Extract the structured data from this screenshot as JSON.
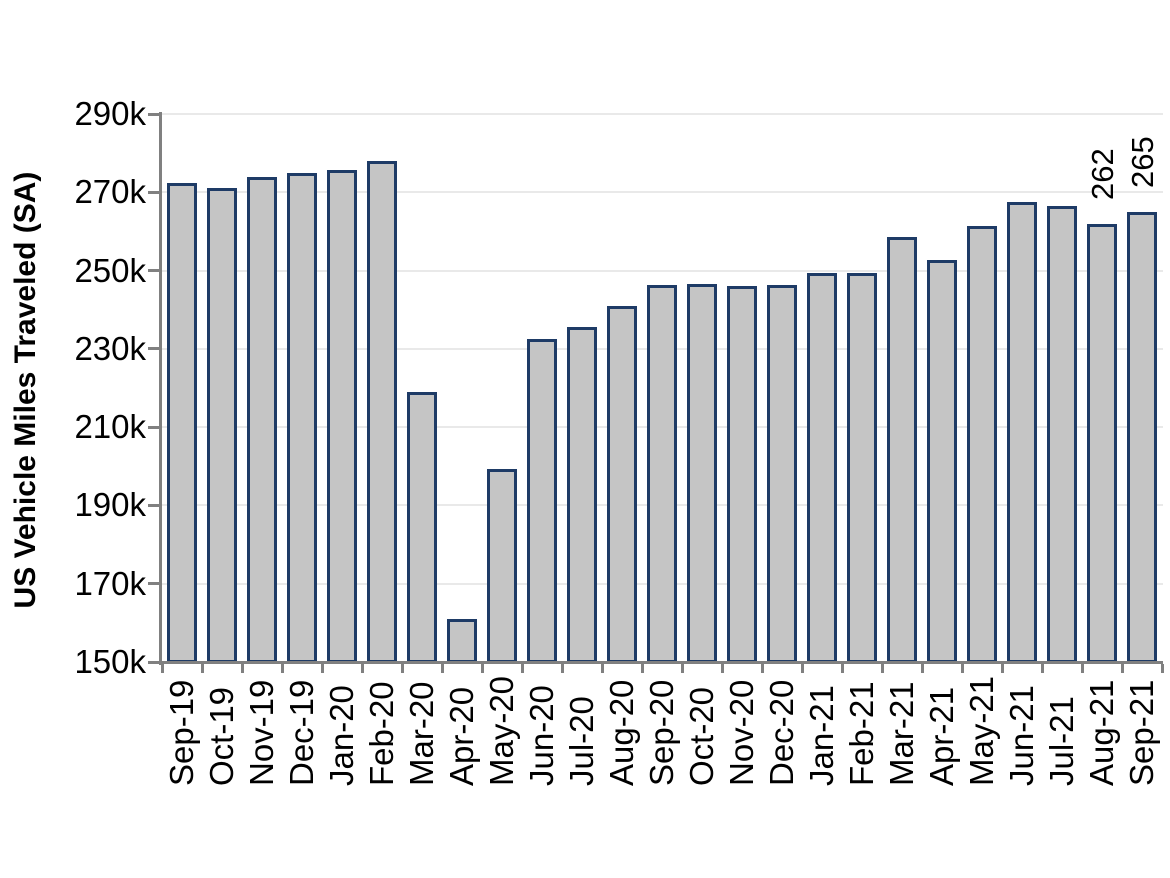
{
  "chart_data": {
    "type": "bar",
    "title": "",
    "xlabel": "",
    "ylabel": "US Vehicle Miles Traveled (SA)",
    "categories": [
      "Sep-19",
      "Oct-19",
      "Nov-19",
      "Dec-19",
      "Jan-20",
      "Feb-20",
      "Mar-20",
      "Apr-20",
      "May-20",
      "Jun-20",
      "Jul-20",
      "Aug-20",
      "Sep-20",
      "Oct-20",
      "Nov-20",
      "Dec-20",
      "Jan-21",
      "Feb-21",
      "Mar-21",
      "Apr-21",
      "May-21",
      "Jun-21",
      "Jul-21",
      "Aug-21",
      "Sep-21"
    ],
    "values": [
      272.3,
      271.0,
      273.8,
      274.9,
      275.6,
      277.9,
      219.0,
      161.0,
      199.3,
      232.6,
      235.6,
      241.0,
      246.3,
      246.6,
      246.0,
      246.3,
      249.5,
      249.3,
      258.5,
      252.6,
      261.4,
      267.5,
      266.4,
      262.0,
      265.0
    ],
    "data_labels": [
      "",
      "",
      "",
      "",
      "",
      "",
      "",
      "",
      "",
      "",
      "",
      "",
      "",
      "",
      "",
      "",
      "",
      "",
      "",
      "",
      "",
      "",
      "",
      "262",
      "265"
    ],
    "yticks": [
      150,
      170,
      190,
      210,
      230,
      250,
      270,
      290
    ],
    "ytick_suffix": "k",
    "ylim": [
      150,
      290
    ],
    "values_unit": "thousands (k), matching axis labels",
    "grid": true,
    "legend": false,
    "colors": {
      "bar_fill": "#C5C5C5",
      "bar_border": "#1E3B66",
      "axis": "#808080",
      "gridline": "#E9E9E9",
      "text": "#000000",
      "background": "#FFFFFF"
    }
  }
}
